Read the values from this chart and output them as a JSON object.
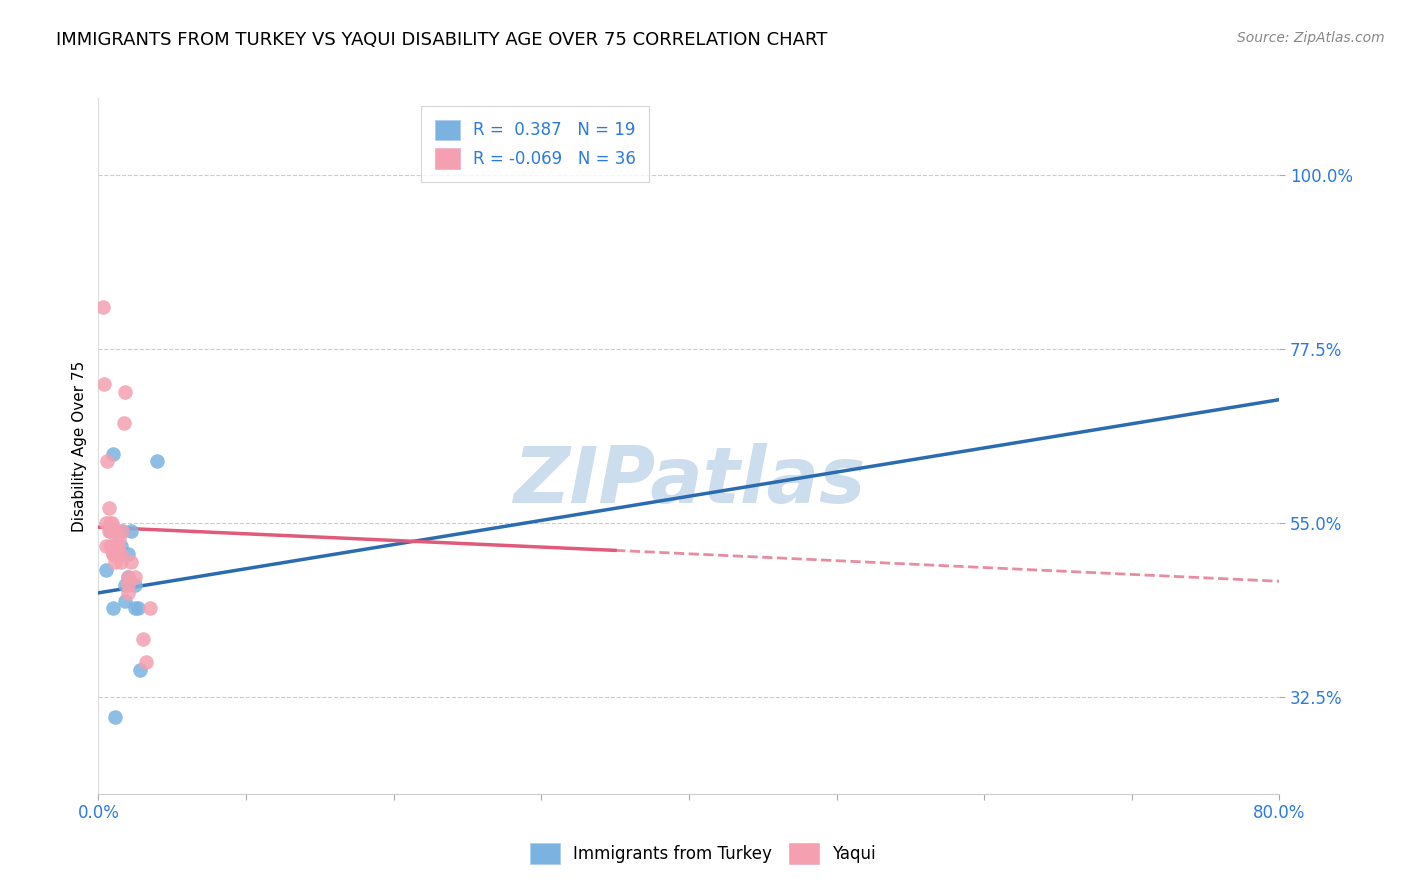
{
  "title": "IMMIGRANTS FROM TURKEY VS YAQUI DISABILITY AGE OVER 75 CORRELATION CHART",
  "source": "Source: ZipAtlas.com",
  "ylabel": "Disability Age Over 75",
  "y_ticks": [
    32.5,
    55.0,
    77.5,
    100.0
  ],
  "y_tick_labels": [
    "32.5%",
    "55.0%",
    "77.5%",
    "100.0%"
  ],
  "x_range": [
    0.0,
    80.0
  ],
  "y_range": [
    20.0,
    110.0
  ],
  "turkey_color": "#7ab3e0",
  "yaqui_color": "#f4a0b0",
  "turkey_line_color": "#2b6cb0",
  "yaqui_line_color": "#e05a7a",
  "turkey_R": 0.387,
  "turkey_N": 19,
  "yaqui_R": -0.069,
  "yaqui_N": 36,
  "watermark": "ZIPatlas",
  "watermark_color": "#ccdded",
  "grid_color": "#cccccc",
  "turkey_scatter_x": [
    0.5,
    0.8,
    1.0,
    1.2,
    1.5,
    1.6,
    1.8,
    2.0,
    2.2,
    2.5,
    2.7,
    1.0,
    1.3,
    1.8,
    2.0,
    2.5,
    2.8,
    4.0,
    1.1
  ],
  "turkey_scatter_y": [
    49.0,
    54.0,
    64.0,
    54.0,
    52.0,
    54.0,
    47.0,
    48.0,
    54.0,
    47.0,
    44.0,
    44.0,
    51.0,
    45.0,
    51.0,
    44.0,
    36.0,
    63.0,
    30.0
  ],
  "yaqui_scatter_x": [
    0.3,
    0.5,
    0.5,
    0.7,
    0.7,
    0.8,
    0.8,
    0.9,
    0.9,
    1.0,
    1.0,
    1.0,
    1.1,
    1.1,
    1.2,
    1.2,
    1.2,
    1.3,
    1.3,
    1.4,
    1.5,
    1.5,
    1.6,
    1.7,
    1.8,
    2.0,
    2.0,
    2.2,
    2.5,
    3.0,
    3.2,
    2.0,
    3.5,
    0.4,
    0.6,
    1.0
  ],
  "yaqui_scatter_y": [
    83.0,
    55.0,
    52.0,
    57.0,
    54.0,
    52.0,
    55.0,
    55.0,
    52.0,
    51.0,
    52.0,
    54.0,
    50.0,
    52.0,
    54.0,
    52.0,
    51.0,
    52.0,
    51.0,
    53.0,
    51.0,
    50.0,
    54.0,
    68.0,
    72.0,
    48.0,
    46.0,
    50.0,
    48.0,
    40.0,
    37.0,
    47.0,
    44.0,
    73.0,
    63.0,
    51.0
  ],
  "turkey_line_x0": 0.0,
  "turkey_line_y0": 46.0,
  "turkey_line_x1": 80.0,
  "turkey_line_y1": 71.0,
  "yaqui_solid_x0": 0.0,
  "yaqui_solid_y0": 54.5,
  "yaqui_solid_x1": 35.0,
  "yaqui_solid_y1": 51.5,
  "yaqui_dash_x0": 35.0,
  "yaqui_dash_y0": 51.5,
  "yaqui_dash_x1": 80.0,
  "yaqui_dash_y1": 47.5
}
